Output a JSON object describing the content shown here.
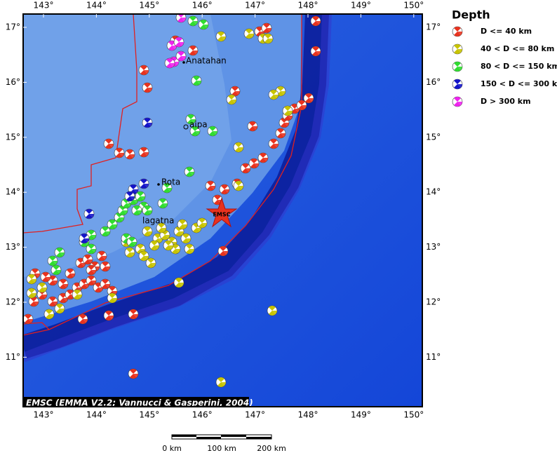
{
  "map": {
    "legend": {
      "title": "Depth",
      "entries": [
        {
          "label": "D <= 40 km",
          "color": "#e8321e"
        },
        {
          "label": "40 < D <= 80 km",
          "color": "#c8c400"
        },
        {
          "label": "80 < D <= 150 km",
          "color": "#30dd30"
        },
        {
          "label": "150 < D <= 300 km",
          "color": "#1414c8"
        },
        {
          "label": "D > 300 km",
          "color": "#ee22ee"
        }
      ]
    },
    "longitude_ticks": [
      {
        "value": 143,
        "label": "143°"
      },
      {
        "value": 144,
        "label": "144°"
      },
      {
        "value": 145,
        "label": "145°"
      },
      {
        "value": 146,
        "label": "146°"
      },
      {
        "value": 147,
        "label": "147°"
      },
      {
        "value": 148,
        "label": "148°"
      },
      {
        "value": 149,
        "label": "149°"
      },
      {
        "value": 150,
        "label": "150°"
      }
    ],
    "latitude_ticks": [
      {
        "value": 11,
        "label": "11°"
      },
      {
        "value": 12,
        "label": "12°"
      },
      {
        "value": 13,
        "label": "13°"
      },
      {
        "value": 14,
        "label": "14°"
      },
      {
        "value": 15,
        "label": "15°"
      },
      {
        "value": 16,
        "label": "16°"
      },
      {
        "value": 17,
        "label": "17°"
      }
    ],
    "places": [
      "Anatahan",
      "aipa",
      "Rota",
      "lagatna"
    ],
    "epicenter_label": "EMSC",
    "credit": "EMSC (EMMA V2.2; Vannucci & Gasperini, 2004)",
    "scale_bar": [
      "0 km",
      "100 km",
      "200 km"
    ]
  }
}
